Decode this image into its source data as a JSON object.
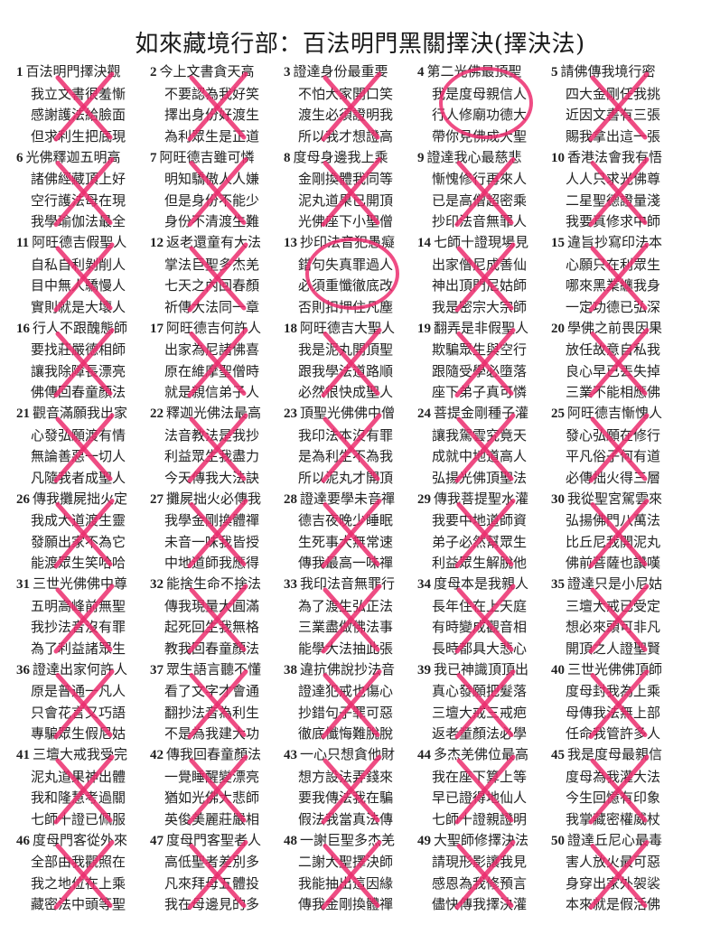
{
  "title": "如來藏境行部：百法明門黑關擇決(擇決法)",
  "mark_color": "#ec2d6e",
  "cells": [
    {
      "num": "1",
      "lines": [
        "百法明門擇決觀",
        "我立文書很羞慚",
        "感謝護法給臉面",
        "但求利生把底現"
      ],
      "mark": "x"
    },
    {
      "num": "2",
      "lines": [
        "今上文書貪天高",
        "不要認為我好笑",
        "擇出身份好渡生",
        "為利眾生是正道"
      ],
      "mark": "x"
    },
    {
      "num": "3",
      "lines": [
        "證達身份最重要",
        "不怕大家開口笑",
        "渡生必須證明我",
        "所以我才想證高"
      ],
      "mark": "x"
    },
    {
      "num": "4",
      "lines": [
        "第二光佛最頂聖",
        "我是度母親信人",
        "行人修廟功德大",
        "帶你見佛成大聖"
      ],
      "mark": "circle"
    },
    {
      "num": "5",
      "lines": [
        "請佛傳我境行密",
        "四大金剛任我挑",
        "近因文書有三張",
        "賜我拿出這一張"
      ],
      "mark": "x"
    },
    {
      "num": "6",
      "lines": [
        "光佛釋迦五明高",
        "諸佛經藏頂上好",
        "空行護法母在現",
        "我學瑜伽法最全"
      ],
      "mark": "x"
    },
    {
      "num": "7",
      "lines": [
        "阿旺德吉雖可憐",
        "明知驕傲人人嫌",
        "但是身份不能少",
        "身份不清渡生難"
      ],
      "mark": "x"
    },
    {
      "num": "8",
      "lines": [
        "度母身邊我上乘",
        "金剛換體我同等",
        "泥丸道果已開頂",
        "光佛座下小聖僧"
      ],
      "mark": "x"
    },
    {
      "num": "9",
      "lines": [
        "證達我心最慈悲",
        "慚愧修行再來人",
        "已是高僧超密乘",
        "抄印法音無罪人"
      ],
      "mark": "x"
    },
    {
      "num": "10",
      "lines": [
        "香港法會我有悟",
        "人人只求光佛尊",
        "二星聖德證量淺",
        "我要真修求中師"
      ],
      "mark": "x"
    },
    {
      "num": "11",
      "lines": [
        "阿旺德吉假聖人",
        "自私自利剝削人",
        "目中無人驕慢人",
        "實則就是大壞人"
      ],
      "mark": "x"
    },
    {
      "num": "12",
      "lines": [
        "返老還童有大法",
        "掌法巨聖多杰羌",
        "七天之內回春顏",
        "祈傳大法同一章"
      ],
      "mark": "x"
    },
    {
      "num": "13",
      "lines": [
        "抄印法音犯愚癡",
        "錯句失真罪過人",
        "必須重懺徹底改",
        "否則扣押住凡塵"
      ],
      "mark": "circle"
    },
    {
      "num": "14",
      "lines": [
        "七師十證現場見",
        "出家僧尼成善仙",
        "神出頂門尼姑師",
        "我是密宗大宗師"
      ],
      "mark": "x"
    },
    {
      "num": "15",
      "lines": [
        "違旨抄寫印法本",
        "心願只在利眾生",
        "哪來黑業纏我身",
        "一定功德已弘深"
      ],
      "mark": "x"
    },
    {
      "num": "16",
      "lines": [
        "行人不跟醜態師",
        "要找莊嚴德相師",
        "讓我除障長漂亮",
        "佛傳回春童顏法"
      ],
      "mark": "x"
    },
    {
      "num": "17",
      "lines": [
        "阿旺德吉何許人",
        "出家為尼諸佛喜",
        "原在維摩聖僧時",
        "就是親信弟子人"
      ],
      "mark": "x"
    },
    {
      "num": "18",
      "lines": [
        "阿旺德吉大聖人",
        "我是泥丸開頂聖",
        "跟我學法道路順",
        "必然很快成聖人"
      ],
      "mark": "x"
    },
    {
      "num": "19",
      "lines": [
        "翻弄是非假聖人",
        "欺騙眾生與空行",
        "跟隨受學必墮落",
        "座下弟子真可憐"
      ],
      "mark": "x"
    },
    {
      "num": "20",
      "lines": [
        "學佛之前畏因果",
        "放任故意自私我",
        "良心早已丟失掉",
        "三業不能相應佛"
      ],
      "mark": "x"
    },
    {
      "num": "21",
      "lines": [
        "觀音滿願我出家",
        "心發弘願渡有情",
        "無論善惡一切人",
        "凡隨我者成聖人"
      ],
      "mark": "x"
    },
    {
      "num": "22",
      "lines": [
        "釋迦光佛法最高",
        "法音教法是我抄",
        "利益眾生我盡力",
        "今天傳我大法訣"
      ],
      "mark": "x"
    },
    {
      "num": "23",
      "lines": [
        "頂聖光佛佛中僧",
        "我印法本沒有罪",
        "是為利生不為我",
        "所以泥丸才開頂"
      ],
      "mark": "x"
    },
    {
      "num": "24",
      "lines": [
        "菩提金剛種子灌",
        "讓我駕雲究竟天",
        "成就中地道高人",
        "弘揚光佛頂聖法"
      ],
      "mark": "x"
    },
    {
      "num": "25",
      "lines": [
        "阿旺德吉慚愧人",
        "發心弘願在修行",
        "平凡俗子何有道",
        "必傳拙火得三層"
      ],
      "mark": "x"
    },
    {
      "num": "26",
      "lines": [
        "傳我攤屍拙火定",
        "我成大道渡生靈",
        "發願出家不為它",
        "能渡眾生笑哈哈"
      ],
      "mark": "x"
    },
    {
      "num": "27",
      "lines": [
        "攤屍拙火必傳我",
        "我學金剛換體禪",
        "未音一味我皆授",
        "中地道師我應得"
      ],
      "mark": "x"
    },
    {
      "num": "28",
      "lines": [
        "證達要學未音禪",
        "德吉夜晚少睡眠",
        "生死事大無常速",
        "傳我最高一味禪"
      ],
      "mark": "x"
    },
    {
      "num": "29",
      "lines": [
        "傳我菩提聖水灌",
        "我要中地道師資",
        "弟子必然幫眾生",
        "利益眾生解脫他"
      ],
      "mark": "x"
    },
    {
      "num": "30",
      "lines": [
        "我從聖宮駕雲來",
        "弘揚佛門八萬法",
        "比丘尼我開泥丸",
        "佛前菩薩也讚嘆"
      ],
      "mark": "x"
    },
    {
      "num": "31",
      "lines": [
        "三世光佛佛中尊",
        "五明高峰前無聖",
        "我抄法音沒有罪",
        "為了利益諸眾生"
      ],
      "mark": "x"
    },
    {
      "num": "32",
      "lines": [
        "能捨生命不捨法",
        "傳我現量大圓滿",
        "起死回生我無格",
        "教我回春童顏法"
      ],
      "mark": "x"
    },
    {
      "num": "33",
      "lines": [
        "我印法音無罪行",
        "為了渡生弘正法",
        "三業盡做佛法事",
        "能學大法抽此張"
      ],
      "mark": "x"
    },
    {
      "num": "34",
      "lines": [
        "度母本是我親人",
        "長年住在上天庭",
        "有時變成觀音相",
        "長時都具大悲心"
      ],
      "mark": "x"
    },
    {
      "num": "35",
      "lines": [
        "證達只是小尼姑",
        "三壇大戒已受定",
        "想必來頭可非凡",
        "開頂之人證聖賢"
      ],
      "mark": "x"
    },
    {
      "num": "36",
      "lines": [
        "證達出家何許人",
        "原是普通一凡人",
        "只會花言又巧語",
        "專騙眾生假尼姑"
      ],
      "mark": "x"
    },
    {
      "num": "37",
      "lines": [
        "眾生語言聽不懂",
        "看了文字才會通",
        "翻抄法音為利生",
        "不是為我建大功"
      ],
      "mark": "x"
    },
    {
      "num": "38",
      "lines": [
        "違抗佛說抄法音",
        "證達犯戒也傷心",
        "抄錯句子罪可惡",
        "徹底懺悔難脫脫"
      ],
      "mark": "x"
    },
    {
      "num": "39",
      "lines": [
        "我已神識頂頂出",
        "真心發願把髮落",
        "三壇大戒三戒疤",
        "返老童顏法必學"
      ],
      "mark": "x"
    },
    {
      "num": "40",
      "lines": [
        "三世光佛佛頂師",
        "度母封我為上乘",
        "母傳我法無上部",
        "任命我管許多人"
      ],
      "mark": "x"
    },
    {
      "num": "41",
      "lines": [
        "三壇大戒我受完",
        "泥丸道果神出體",
        "我和隆慧考過關",
        "七師十證已佩服"
      ],
      "mark": "x"
    },
    {
      "num": "42",
      "lines": [
        "傳我回春童顏法",
        "一覺睡醒變漂亮",
        "猶如光佛大悲師",
        "英俊美麗莊嚴相"
      ],
      "mark": "x"
    },
    {
      "num": "43",
      "lines": [
        "一心只想貪他財",
        "想方設法弄錢來",
        "要我傳法我在騙",
        "假法我當真法傳"
      ],
      "mark": "x"
    },
    {
      "num": "44",
      "lines": [
        "多杰羌佛位最高",
        "我在座下算上等",
        "早已證得地仙人",
        "七師十證親證明"
      ],
      "mark": "x"
    },
    {
      "num": "45",
      "lines": [
        "我是度母最親信",
        "度母為我灌大法",
        "今生回憶有印象",
        "我掌藏密權威杖"
      ],
      "mark": "x"
    },
    {
      "num": "46",
      "lines": [
        "度母門客從外來",
        "全部由我觀照在",
        "我之地位在上乘",
        "藏密法中頭等聖"
      ],
      "mark": "x"
    },
    {
      "num": "47",
      "lines": [
        "度母門客聖者人",
        "高低聖者差別多",
        "凡來拜母五體投",
        "我在母邊見的多"
      ],
      "mark": "x"
    },
    {
      "num": "48",
      "lines": [
        "一謝巨聖多杰羌",
        "二謝大聖擇決師",
        "我能抽出這因緣",
        "傳我金剛換體禪"
      ],
      "mark": "x"
    },
    {
      "num": "49",
      "lines": [
        "大聖師修擇決法",
        "請現形影讓我見",
        "感恩為我修預言",
        "儘快傳我擇決灌"
      ],
      "mark": "x"
    },
    {
      "num": "50",
      "lines": [
        "證達丘尼心最毒",
        "害人放火最可惡",
        "身穿出家外袈裟",
        "本來就是假活佛"
      ],
      "mark": "x"
    }
  ]
}
